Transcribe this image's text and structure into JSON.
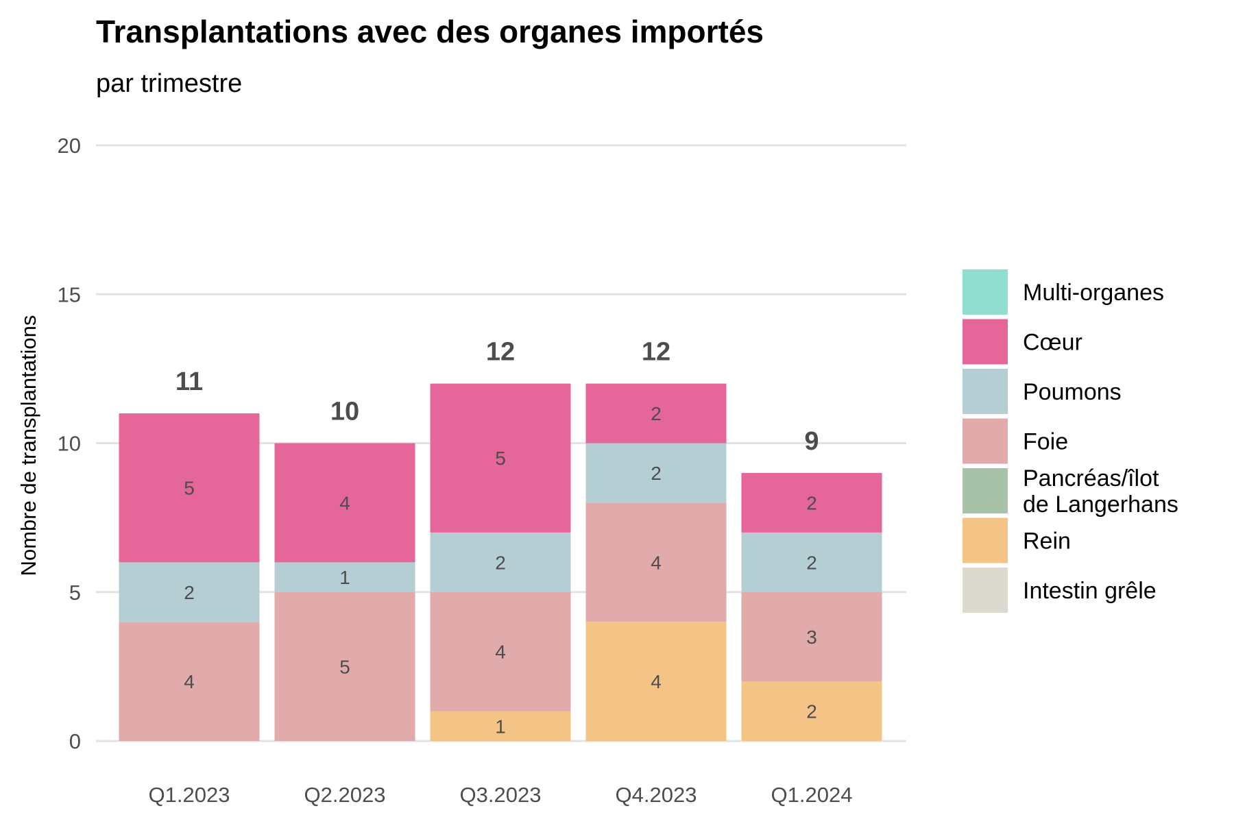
{
  "chart_data": {
    "type": "bar",
    "stacked": true,
    "title": "Transplantations avec des organes importés",
    "subtitle": "par trimestre",
    "xlabel": "",
    "ylabel": "Nombre de transplantations",
    "ylim": [
      0,
      20
    ],
    "yticks": [
      0,
      5,
      10,
      15,
      20
    ],
    "grid": true,
    "legend_position": "right",
    "categories": [
      "Q1.2023",
      "Q2.2023",
      "Q3.2023",
      "Q4.2023",
      "Q1.2024"
    ],
    "totals": [
      11,
      10,
      12,
      12,
      9
    ],
    "series": [
      {
        "name": "Multi-organes",
        "color": "#8FDECF",
        "values": [
          0,
          0,
          0,
          0,
          0
        ]
      },
      {
        "name": "Cœur",
        "color": "#E56698",
        "values": [
          5,
          4,
          5,
          2,
          2
        ]
      },
      {
        "name": "Poumons",
        "color": "#B5CED4",
        "values": [
          2,
          1,
          2,
          2,
          2
        ]
      },
      {
        "name": "Foie",
        "color": "#E1AAAB",
        "values": [
          4,
          5,
          4,
          4,
          3
        ]
      },
      {
        "name": "Pancréas/îlot de Langerhans",
        "legend_lines": [
          "Pancréas/îlot",
          "de Langerhans"
        ],
        "color": "#A7C2A9",
        "values": [
          0,
          0,
          0,
          0,
          0
        ]
      },
      {
        "name": "Rein",
        "color": "#F4C386",
        "values": [
          0,
          0,
          1,
          4,
          2
        ]
      },
      {
        "name": "Intestin grêle",
        "color": "#DCDACE",
        "values": [
          0,
          0,
          0,
          0,
          0
        ]
      }
    ]
  }
}
